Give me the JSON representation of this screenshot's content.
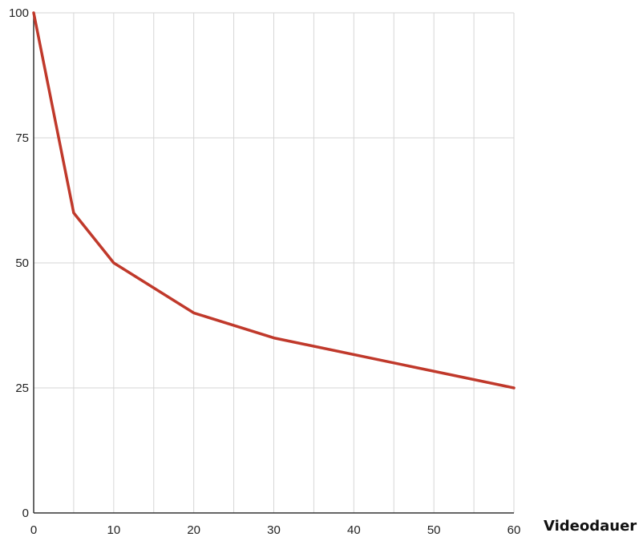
{
  "chart_data": {
    "type": "line",
    "title": "",
    "xlabel": "Videodauer",
    "ylabel": "",
    "xlim": [
      0,
      60
    ],
    "ylim": [
      0,
      100
    ],
    "x_ticks": [
      0,
      10,
      20,
      30,
      40,
      50,
      60
    ],
    "x_minor_gridlines": [
      5,
      15,
      25,
      35,
      45,
      55
    ],
    "y_ticks": [
      0,
      25,
      50,
      75,
      100
    ],
    "grid": true,
    "legend": "none",
    "series": [
      {
        "color": "#c0392b",
        "points": [
          {
            "x": 0,
            "y": 100
          },
          {
            "x": 5,
            "y": 60
          },
          {
            "x": 10,
            "y": 50
          },
          {
            "x": 20,
            "y": 40
          },
          {
            "x": 30,
            "y": 35
          },
          {
            "x": 60,
            "y": 25
          }
        ]
      }
    ]
  }
}
